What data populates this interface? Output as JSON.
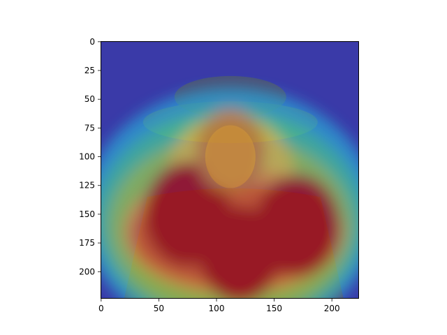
{
  "chart_data": {
    "type": "heatmap",
    "title": "",
    "xlabel": "",
    "ylabel": "",
    "image_extent": {
      "x": [
        -0.5,
        223.5
      ],
      "y": [
        223.5,
        -0.5
      ]
    },
    "x_ticks": [
      0,
      50,
      100,
      150,
      200
    ],
    "x_tick_labels": [
      "0",
      "50",
      "100",
      "150",
      "200"
    ],
    "y_ticks": [
      0,
      25,
      50,
      75,
      100,
      125,
      150,
      175,
      200
    ],
    "y_tick_labels": [
      "0",
      "25",
      "50",
      "75",
      "100",
      "125",
      "150",
      "175",
      "200"
    ],
    "y_inverted": true,
    "grid": false,
    "colormap": "jet",
    "overlay_alpha": 0.5,
    "base_image": "portrait of an elderly man wearing a wide-brimmed hat",
    "hotspots": [
      {
        "x": 75,
        "y": 150,
        "value": 1.0
      },
      {
        "x": 170,
        "y": 160,
        "value": 0.95
      },
      {
        "x": 120,
        "y": 185,
        "value": 0.85
      },
      {
        "x": 112,
        "y": 95,
        "value": 0.55
      }
    ],
    "colors": {
      "low": "#2a2aa8",
      "mid": "#4fcf7a",
      "high": "#b01010"
    }
  }
}
